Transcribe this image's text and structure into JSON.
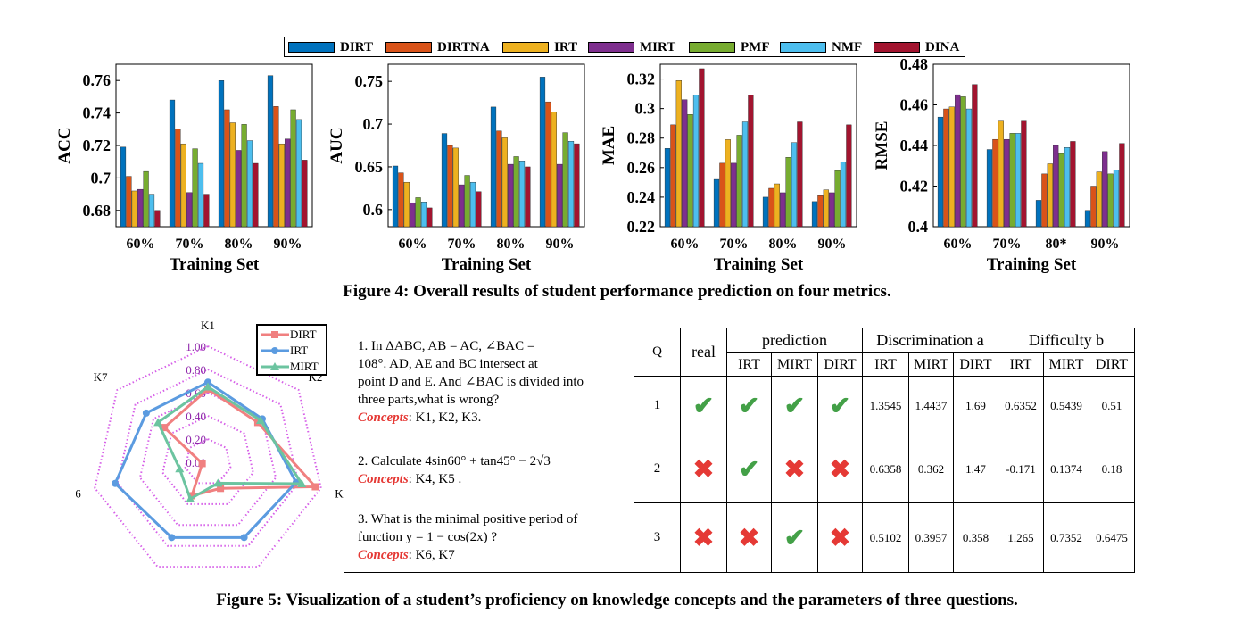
{
  "legend": [
    {
      "name": "DIRT",
      "color": "#0072BD"
    },
    {
      "name": "DIRTNA",
      "color": "#D95319"
    },
    {
      "name": "IRT",
      "color": "#EDB120"
    },
    {
      "name": "MIRT",
      "color": "#7E2F8E"
    },
    {
      "name": "PMF",
      "color": "#77AC30"
    },
    {
      "name": "NMF",
      "color": "#4DBEEE"
    },
    {
      "name": "DINA",
      "color": "#A2142F"
    }
  ],
  "chart_data": [
    {
      "type": "bar",
      "ylabel": "ACC",
      "xlabel": "Training Set",
      "categories": [
        "60%",
        "70%",
        "80%",
        "90%"
      ],
      "ylim": [
        0.67,
        0.77
      ],
      "yticks": [
        "0.68",
        "0.7",
        "0.72",
        "0.74",
        "0.76"
      ],
      "series": [
        {
          "name": "DIRT",
          "values": [
            0.719,
            0.748,
            0.76,
            0.763
          ]
        },
        {
          "name": "DIRTNA",
          "values": [
            0.701,
            0.73,
            0.742,
            0.744
          ]
        },
        {
          "name": "IRT",
          "values": [
            0.692,
            0.721,
            0.734,
            0.721
          ]
        },
        {
          "name": "MIRT",
          "values": [
            0.693,
            0.691,
            0.717,
            0.724
          ]
        },
        {
          "name": "PMF",
          "values": [
            0.704,
            0.718,
            0.733,
            0.742
          ]
        },
        {
          "name": "NMF",
          "values": [
            0.69,
            0.709,
            0.723,
            0.736
          ]
        },
        {
          "name": "DINA",
          "values": [
            0.68,
            0.69,
            0.709,
            0.711
          ]
        }
      ]
    },
    {
      "type": "bar",
      "ylabel": "AUC",
      "xlabel": "Training Set",
      "categories": [
        "60%",
        "70%",
        "80%",
        "90%"
      ],
      "ylim": [
        0.58,
        0.77
      ],
      "yticks": [
        "0.6",
        "0.65",
        "0.7",
        "0.75"
      ],
      "series": [
        {
          "name": "DIRT",
          "values": [
            0.651,
            0.689,
            0.72,
            0.755
          ]
        },
        {
          "name": "DIRTNA",
          "values": [
            0.643,
            0.675,
            0.692,
            0.726
          ]
        },
        {
          "name": "IRT",
          "values": [
            0.632,
            0.672,
            0.684,
            0.714
          ]
        },
        {
          "name": "MIRT",
          "values": [
            0.608,
            0.629,
            0.653,
            0.653
          ]
        },
        {
          "name": "PMF",
          "values": [
            0.614,
            0.64,
            0.662,
            0.69
          ]
        },
        {
          "name": "NMF",
          "values": [
            0.609,
            0.632,
            0.657,
            0.68
          ]
        },
        {
          "name": "DINA",
          "values": [
            0.602,
            0.621,
            0.65,
            0.677
          ]
        }
      ]
    },
    {
      "type": "bar",
      "ylabel": "MAE",
      "xlabel": "Training Set",
      "categories": [
        "60%",
        "70%",
        "80%",
        "90%"
      ],
      "ylim": [
        0.22,
        0.33
      ],
      "yticks": [
        "0.22",
        "0.24",
        "0.26",
        "0.28",
        "0.3",
        "0.32"
      ],
      "series": [
        {
          "name": "DIRT",
          "values": [
            0.273,
            0.252,
            0.24,
            0.237
          ]
        },
        {
          "name": "DIRTNA",
          "values": [
            0.289,
            0.263,
            0.246,
            0.241
          ]
        },
        {
          "name": "IRT",
          "values": [
            0.319,
            0.279,
            0.249,
            0.245
          ]
        },
        {
          "name": "MIRT",
          "values": [
            0.306,
            0.263,
            0.243,
            0.243
          ]
        },
        {
          "name": "PMF",
          "values": [
            0.296,
            0.282,
            0.267,
            0.258
          ]
        },
        {
          "name": "NMF",
          "values": [
            0.309,
            0.291,
            0.277,
            0.264
          ]
        },
        {
          "name": "DINA",
          "values": [
            0.327,
            0.309,
            0.291,
            0.289
          ]
        }
      ]
    },
    {
      "type": "bar",
      "ylabel": "RMSE",
      "xlabel": "Training Set",
      "categories": [
        "60%",
        "70%",
        "80*",
        "90%"
      ],
      "ylim": [
        0.4,
        0.48
      ],
      "yticks": [
        "0.4",
        "0.42",
        "0.44",
        "0.46",
        "0.48"
      ],
      "series": [
        {
          "name": "DIRT",
          "values": [
            0.454,
            0.438,
            0.413,
            0.408
          ]
        },
        {
          "name": "DIRTNA",
          "values": [
            0.458,
            0.443,
            0.426,
            0.42
          ]
        },
        {
          "name": "IRT",
          "values": [
            0.459,
            0.452,
            0.431,
            0.427
          ]
        },
        {
          "name": "MIRT",
          "values": [
            0.465,
            0.443,
            0.44,
            0.437
          ]
        },
        {
          "name": "PMF",
          "values": [
            0.464,
            0.446,
            0.436,
            0.426
          ]
        },
        {
          "name": "NMF",
          "values": [
            0.458,
            0.446,
            0.439,
            0.428
          ]
        },
        {
          "name": "DINA",
          "values": [
            0.47,
            0.452,
            0.442,
            0.441
          ]
        }
      ]
    },
    {
      "type": "radar",
      "axes": [
        "K1",
        "K2",
        "K3",
        "K4",
        "K5",
        "K6",
        "K7"
      ],
      "rticks": [
        "0.00",
        "0.20",
        "0.40",
        "0.60",
        "0.80",
        "1.00"
      ],
      "series": [
        {
          "name": "DIRT",
          "color": "#F08080",
          "values": [
            0.63,
            0.55,
            0.95,
            0.25,
            0.32,
            0.05,
            0.48
          ]
        },
        {
          "name": "IRT",
          "color": "#5B9BE0",
          "values": [
            0.69,
            0.6,
            0.78,
            0.72,
            0.72,
            0.82,
            0.68
          ]
        },
        {
          "name": "MIRT",
          "color": "#6CC4A0",
          "values": [
            0.65,
            0.58,
            0.83,
            0.2,
            0.35,
            0.25,
            0.55
          ]
        }
      ]
    }
  ],
  "figure4_caption": "Figure 4: Overall results of student performance prediction on four metrics.",
  "figure5_caption": "Figure 5: Visualization of a student’s proficiency on knowledge concepts and the parameters of three questions.",
  "questions": [
    {
      "lines": [
        "1. In ΔABC, AB = AC, ∠BAC =",
        "108°. AD, AE and BC intersect at",
        "point D and E. And ∠BAC is divided into",
        "three parts,what is wrong?"
      ],
      "concepts_label": "Concepts",
      "concepts": ": K1, K2, K3."
    },
    {
      "lines": [
        "2. Calculate 4sin60° + tan45° − 2√3"
      ],
      "concepts_label": "Concepts",
      "concepts": ": K4, K5 ."
    },
    {
      "lines": [
        "3. What is the minimal positive period of",
        "function y = 1 − cos(2x) ?"
      ],
      "concepts_label": "Concepts",
      "concepts": ": K6, K7"
    }
  ],
  "table": {
    "header_q": "Q",
    "header_real": "real",
    "header_prediction": "prediction",
    "header_disc": "Discrimination a",
    "header_diff": "Difficulty b",
    "sub": [
      "IRT",
      "MIRT",
      "DIRT",
      "IRT",
      "MIRT",
      "DIRT",
      "IRT",
      "MIRT",
      "DIRT"
    ],
    "rows": [
      {
        "q": "1",
        "marks": [
          "check",
          "check",
          "check",
          "check"
        ],
        "disc": [
          "1.3545",
          "1.4437",
          "1.69"
        ],
        "diff": [
          "0.6352",
          "0.5439",
          "0.51"
        ]
      },
      {
        "q": "2",
        "marks": [
          "cross",
          "check",
          "cross",
          "cross"
        ],
        "disc": [
          "0.6358",
          "0.362",
          "1.47"
        ],
        "diff": [
          "-0.171",
          "0.1374",
          "0.18"
        ]
      },
      {
        "q": "3",
        "marks": [
          "cross",
          "cross",
          "check",
          "cross"
        ],
        "disc": [
          "0.5102",
          "0.3957",
          "0.358"
        ],
        "diff": [
          "1.265",
          "0.7352",
          "0.6475"
        ]
      }
    ]
  }
}
